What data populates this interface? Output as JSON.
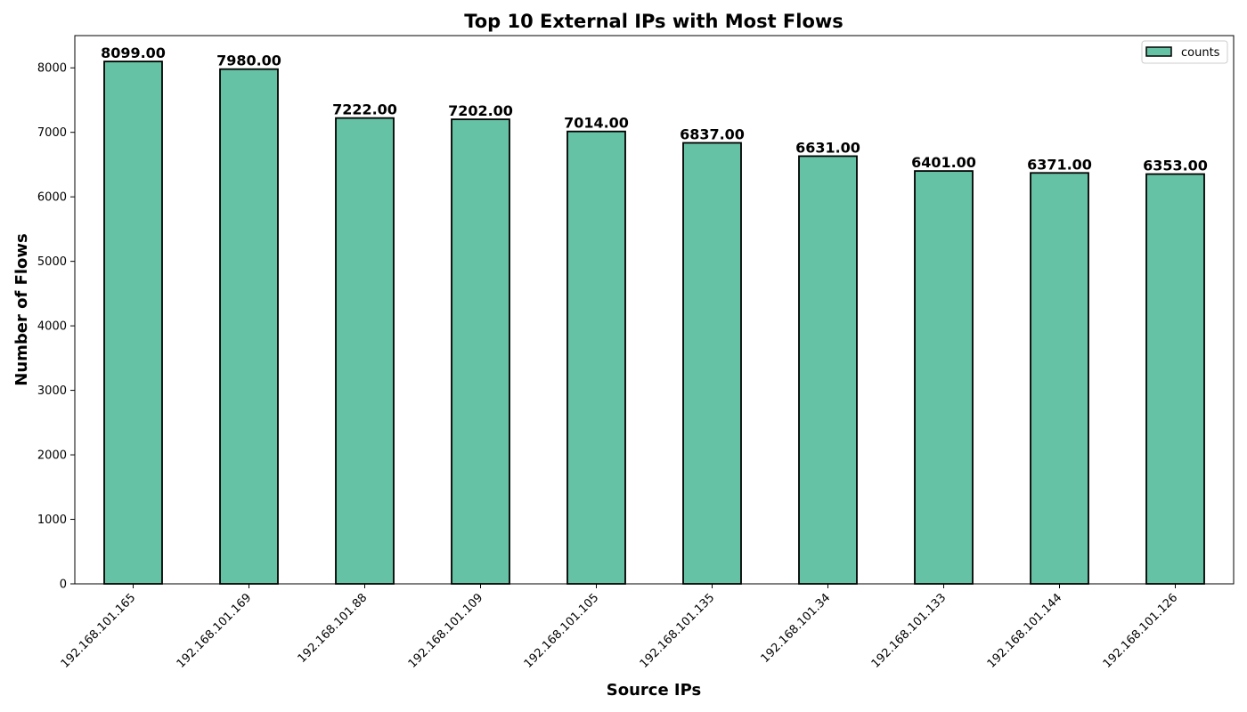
{
  "chart_data": {
    "type": "bar",
    "title": "Top 10 External IPs with Most Flows",
    "xlabel": "Source IPs",
    "ylabel": "Number of Flows",
    "categories": [
      "192.168.101.165",
      "192.168.101.169",
      "192.168.101.88",
      "192.168.101.109",
      "192.168.101.105",
      "192.168.101.135",
      "192.168.101.34",
      "192.168.101.133",
      "192.168.101.144",
      "192.168.101.126"
    ],
    "series": [
      {
        "name": "counts",
        "values": [
          8099,
          7980,
          7222,
          7202,
          7014,
          6837,
          6631,
          6401,
          6371,
          6353
        ]
      }
    ],
    "data_labels": [
      "8099.00",
      "7980.00",
      "7222.00",
      "7202.00",
      "7014.00",
      "6837.00",
      "6631.00",
      "6401.00",
      "6371.00",
      "6353.00"
    ],
    "ylim": [
      0,
      8500
    ],
    "yticks": [
      0,
      1000,
      2000,
      3000,
      4000,
      5000,
      6000,
      7000,
      8000
    ],
    "ytick_labels": [
      "0",
      "1000",
      "2000",
      "3000",
      "4000",
      "5000",
      "6000",
      "7000",
      "8000"
    ],
    "grid": false,
    "legend_position": "top-right",
    "bar_color": "#66c2a5",
    "edge_color": "#000000"
  }
}
